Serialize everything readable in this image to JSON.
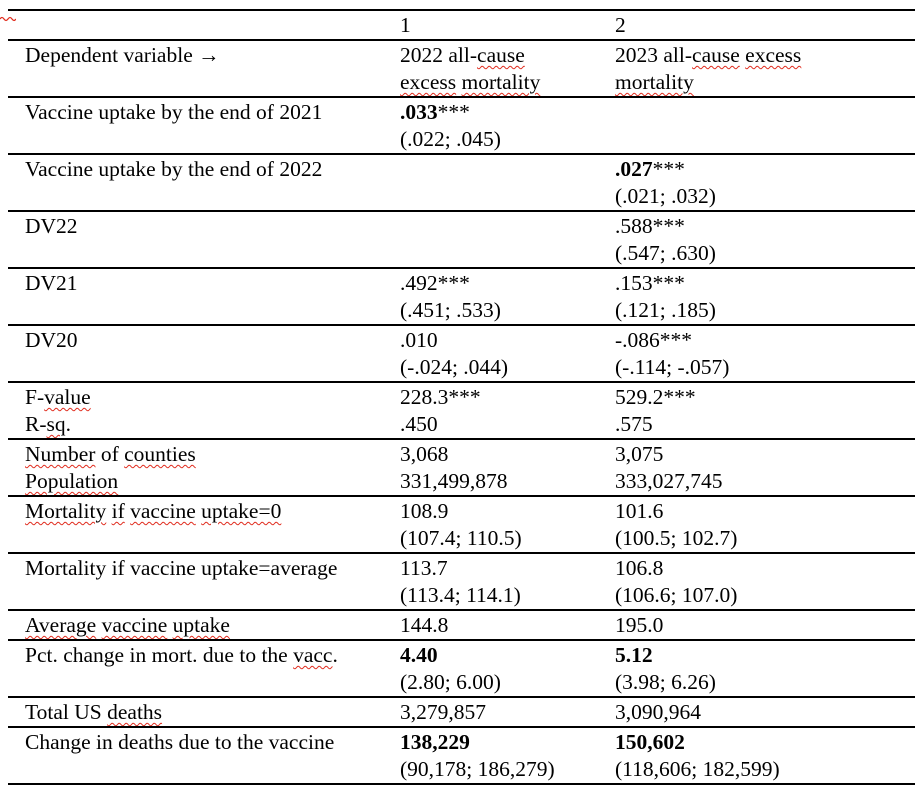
{
  "colors": {
    "squiggle": "#e02b1d",
    "text": "#000000",
    "border": "#000000"
  },
  "artifacts": {
    "top_left_cropped_squiggle": true
  },
  "table": {
    "columns": [
      "label",
      "model-1",
      "model-2"
    ],
    "column_headers": [
      "",
      "1",
      "2"
    ],
    "rows": [
      {
        "name": "column-numbers",
        "cells": [
          {
            "lines": []
          },
          {
            "lines": [
              [
                {
                  "t": "1"
                }
              ]
            ]
          },
          {
            "lines": [
              [
                {
                  "t": "2"
                }
              ]
            ]
          }
        ]
      },
      {
        "name": "dependent-variable",
        "cells": [
          {
            "lines": [
              [
                {
                  "t": "Dependent variable →"
                }
              ]
            ]
          },
          {
            "lines": [
              [
                {
                  "t": "2022 all-"
                },
                {
                  "t": "cause",
                  "sq": true
                }
              ],
              [
                {
                  "t": "excess",
                  "sq": true
                },
                {
                  "t": " "
                },
                {
                  "t": "mortality",
                  "sq": true
                }
              ]
            ]
          },
          {
            "lines": [
              [
                {
                  "t": "2023 all-"
                },
                {
                  "t": "cause",
                  "sq": true
                },
                {
                  "t": " "
                },
                {
                  "t": "excess",
                  "sq": true
                }
              ],
              [
                {
                  "t": "mortality",
                  "sq": true
                }
              ]
            ]
          }
        ]
      },
      {
        "name": "vaccine-uptake-2021",
        "cells": [
          {
            "lines": [
              [
                {
                  "t": "Vaccine uptake by the end of 2021"
                }
              ]
            ]
          },
          {
            "lines": [
              [
                {
                  "t": ".033",
                  "b": true
                },
                {
                  "t": "***"
                }
              ],
              [
                {
                  "t": "(.022; .045)"
                }
              ]
            ]
          },
          {
            "lines": []
          }
        ]
      },
      {
        "name": "vaccine-uptake-2022",
        "cells": [
          {
            "lines": [
              [
                {
                  "t": "Vaccine uptake by the end of 2022"
                }
              ]
            ]
          },
          {
            "lines": []
          },
          {
            "lines": [
              [
                {
                  "t": ".027",
                  "b": true
                },
                {
                  "t": "***"
                }
              ],
              [
                {
                  "t": "(.021; .032)"
                }
              ]
            ]
          }
        ]
      },
      {
        "name": "dv22",
        "cells": [
          {
            "lines": [
              [
                {
                  "t": "DV22"
                }
              ]
            ]
          },
          {
            "lines": []
          },
          {
            "lines": [
              [
                {
                  "t": ".588***"
                }
              ],
              [
                {
                  "t": "(.547; .630)"
                }
              ]
            ]
          }
        ]
      },
      {
        "name": "dv21",
        "cells": [
          {
            "lines": [
              [
                {
                  "t": "DV21"
                }
              ]
            ]
          },
          {
            "lines": [
              [
                {
                  "t": ".492***"
                }
              ],
              [
                {
                  "t": "(.451; .533)"
                }
              ]
            ]
          },
          {
            "lines": [
              [
                {
                  "t": ".153***"
                }
              ],
              [
                {
                  "t": "(.121; .185)"
                }
              ]
            ]
          }
        ]
      },
      {
        "name": "dv20",
        "cells": [
          {
            "lines": [
              [
                {
                  "t": "DV20"
                }
              ]
            ]
          },
          {
            "lines": [
              [
                {
                  "t": ".010"
                }
              ],
              [
                {
                  "t": "(-.024; .044)"
                }
              ]
            ]
          },
          {
            "lines": [
              [
                {
                  "t": "-.086***"
                }
              ],
              [
                {
                  "t": "(-.114; -.057)"
                }
              ]
            ]
          }
        ]
      },
      {
        "name": "fvalue-rsq",
        "cells": [
          {
            "lines": [
              [
                {
                  "t": "F-"
                },
                {
                  "t": "value",
                  "sq": true
                }
              ],
              [
                {
                  "t": "R-"
                },
                {
                  "t": "sq",
                  "sq": true
                },
                {
                  "t": "."
                }
              ]
            ]
          },
          {
            "lines": [
              [
                {
                  "t": "228.3***"
                }
              ],
              [
                {
                  "t": ".450"
                }
              ]
            ]
          },
          {
            "lines": [
              [
                {
                  "t": "529.2***"
                }
              ],
              [
                {
                  "t": ".575"
                }
              ]
            ]
          }
        ]
      },
      {
        "name": "counties-population",
        "cells": [
          {
            "lines": [
              [
                {
                  "t": "Number",
                  "sq": true
                },
                {
                  "t": " of "
                },
                {
                  "t": "counties",
                  "sq": true
                }
              ],
              [
                {
                  "t": "Population",
                  "sq": true
                }
              ]
            ]
          },
          {
            "lines": [
              [
                {
                  "t": "3,068"
                }
              ],
              [
                {
                  "t": "331,499,878"
                }
              ]
            ]
          },
          {
            "lines": [
              [
                {
                  "t": "3,075"
                }
              ],
              [
                {
                  "t": "333,027,745"
                }
              ]
            ]
          }
        ]
      },
      {
        "name": "mortality-uptake-0",
        "cells": [
          {
            "lines": [
              [
                {
                  "t": "Mortality",
                  "sq": true
                },
                {
                  "t": " "
                },
                {
                  "t": "if",
                  "sq": true
                },
                {
                  "t": " "
                },
                {
                  "t": "vaccine",
                  "sq": true
                },
                {
                  "t": " "
                },
                {
                  "t": "uptake=0",
                  "sq": true
                }
              ]
            ]
          },
          {
            "lines": [
              [
                {
                  "t": "108.9"
                }
              ],
              [
                {
                  "t": "(107.4; 110.5)"
                }
              ]
            ]
          },
          {
            "lines": [
              [
                {
                  "t": "101.6"
                }
              ],
              [
                {
                  "t": "(100.5; 102.7)"
                }
              ]
            ]
          }
        ]
      },
      {
        "name": "mortality-uptake-average",
        "cells": [
          {
            "lines": [
              [
                {
                  "t": "Mortality if vaccine uptake=average"
                }
              ]
            ]
          },
          {
            "lines": [
              [
                {
                  "t": "113.7"
                }
              ],
              [
                {
                  "t": "(113.4; 114.1)"
                }
              ]
            ]
          },
          {
            "lines": [
              [
                {
                  "t": "106.8"
                }
              ],
              [
                {
                  "t": "(106.6; 107.0)"
                }
              ]
            ]
          }
        ]
      },
      {
        "name": "average-vaccine-uptake",
        "cells": [
          {
            "lines": [
              [
                {
                  "t": "Average",
                  "sq": true
                },
                {
                  "t": " "
                },
                {
                  "t": "vaccine",
                  "sq": true
                },
                {
                  "t": " "
                },
                {
                  "t": "uptake",
                  "sq": true
                }
              ]
            ]
          },
          {
            "lines": [
              [
                {
                  "t": "144.8"
                }
              ]
            ]
          },
          {
            "lines": [
              [
                {
                  "t": "195.0"
                }
              ]
            ]
          }
        ]
      },
      {
        "name": "pct-change-mortality",
        "cells": [
          {
            "lines": [
              [
                {
                  "t": "Pct. change in mort. due to the "
                },
                {
                  "t": "vacc",
                  "sq": true
                },
                {
                  "t": "."
                }
              ]
            ]
          },
          {
            "lines": [
              [
                {
                  "t": "4.40",
                  "b": true
                }
              ],
              [
                {
                  "t": "(2.80; 6.00)"
                }
              ]
            ]
          },
          {
            "lines": [
              [
                {
                  "t": "5.12",
                  "b": true
                }
              ],
              [
                {
                  "t": "(3.98; 6.26)"
                }
              ]
            ]
          }
        ]
      },
      {
        "name": "total-us-deaths",
        "cells": [
          {
            "lines": [
              [
                {
                  "t": "Total US "
                },
                {
                  "t": "deaths",
                  "sq": true
                }
              ]
            ]
          },
          {
            "lines": [
              [
                {
                  "t": "3,279,857"
                }
              ]
            ]
          },
          {
            "lines": [
              [
                {
                  "t": "3,090,964"
                }
              ]
            ]
          }
        ]
      },
      {
        "name": "change-in-deaths",
        "cells": [
          {
            "lines": [
              [
                {
                  "t": "Change in deaths due to the vaccine"
                }
              ]
            ]
          },
          {
            "lines": [
              [
                {
                  "t": "138,229",
                  "b": true
                }
              ],
              [
                {
                  "t": "(90,178; 186,279)"
                }
              ]
            ]
          },
          {
            "lines": [
              [
                {
                  "t": "150,602",
                  "b": true
                }
              ],
              [
                {
                  "t": "(118,606; 182,599)"
                }
              ]
            ]
          }
        ]
      }
    ]
  }
}
